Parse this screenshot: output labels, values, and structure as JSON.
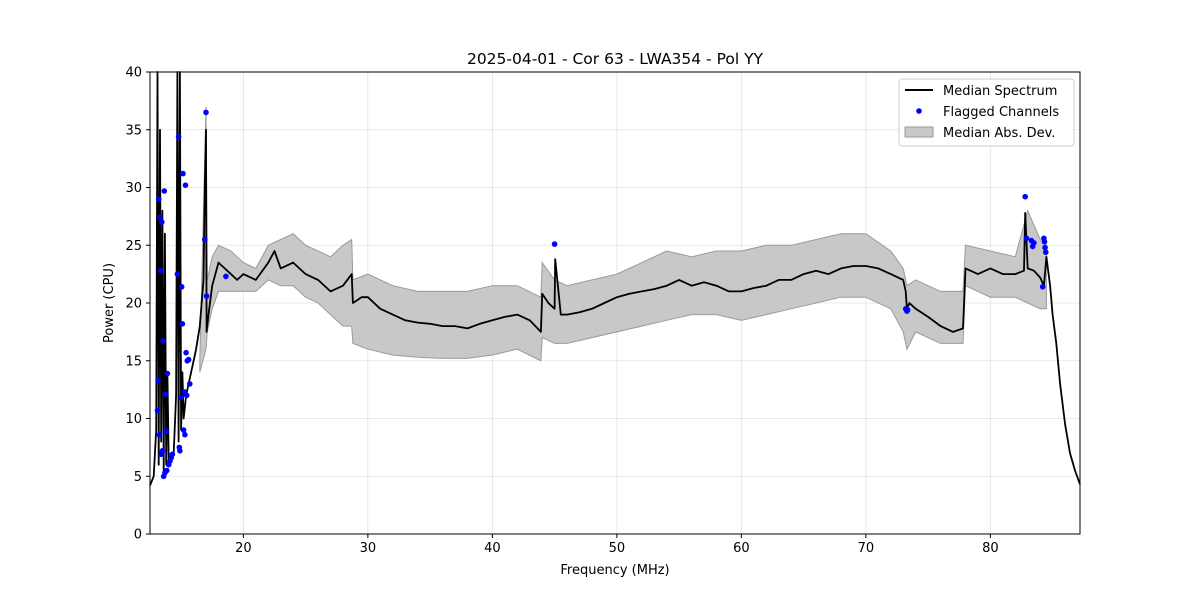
{
  "chart_data": {
    "type": "line",
    "title": "2025-04-01 - Cor 63 - LWA354 - Pol YY",
    "xlabel": "Frequency (MHz)",
    "ylabel": "Power (CPU)",
    "xlim": [
      12.5,
      87.2
    ],
    "ylim": [
      0,
      40
    ],
    "xticks": [
      20,
      30,
      40,
      50,
      60,
      70,
      80
    ],
    "yticks": [
      0,
      5,
      10,
      15,
      20,
      25,
      30,
      35,
      40
    ],
    "grid": true,
    "legend_position": "top-right",
    "colors": {
      "median": "#000000",
      "flagged": "#0000ff",
      "band_fill": "#c8c8c8",
      "band_edge": "#9a9a9a"
    },
    "series": [
      {
        "name": "Median Spectrum",
        "kind": "line",
        "x": [
          12.5,
          12.8,
          13.0,
          13.1,
          13.2,
          13.3,
          13.4,
          13.5,
          13.6,
          13.7,
          13.8,
          13.9,
          14.0,
          14.2,
          14.4,
          14.6,
          14.7,
          14.8,
          14.9,
          15.0,
          15.1,
          15.2,
          15.3,
          15.4,
          15.6,
          15.8,
          16.0,
          16.2,
          16.5,
          16.8,
          16.9,
          17.0,
          17.05,
          17.2,
          17.5,
          18.0,
          18.5,
          19.0,
          19.5,
          20.0,
          21.0,
          22.0,
          22.5,
          23.0,
          24.0,
          25.0,
          26.0,
          27.0,
          28.0,
          28.7,
          28.8,
          29.5,
          30.0,
          31.0,
          32.0,
          33.0,
          34.0,
          35.0,
          36.0,
          37.0,
          38.0,
          39.0,
          40.0,
          41.0,
          42.0,
          43.0,
          43.9,
          44.0,
          44.5,
          45.0,
          45.05,
          45.5,
          46.0,
          47.0,
          48.0,
          49.0,
          50.0,
          51.0,
          52.0,
          53.0,
          54.0,
          55.0,
          56.0,
          57.0,
          58.0,
          59.0,
          60.0,
          61.0,
          62.0,
          63.0,
          64.0,
          65.0,
          66.0,
          67.0,
          68.0,
          69.0,
          70.0,
          71.0,
          72.0,
          73.0,
          73.2,
          73.3,
          73.5,
          74.0,
          75.0,
          76.0,
          77.0,
          77.8,
          78.0,
          79.0,
          80.0,
          81.0,
          82.0,
          82.7,
          82.8,
          83.0,
          83.5,
          84.0,
          84.3,
          84.5,
          84.8,
          85.0,
          85.3,
          85.6,
          86.0,
          86.4,
          86.8,
          87.2
        ],
        "y": [
          4.2,
          5.0,
          9.0,
          40.0,
          6.0,
          35.0,
          8.0,
          28.0,
          5.5,
          26.0,
          6.0,
          14.0,
          6.3,
          6.6,
          7.0,
          12.0,
          40.0,
          8.0,
          40.0,
          9.0,
          14.0,
          10.0,
          11.0,
          12.0,
          13.0,
          14.0,
          15.0,
          16.0,
          18.0,
          22.0,
          30.0,
          35.0,
          17.5,
          19.0,
          21.5,
          23.5,
          23.0,
          22.5,
          22.0,
          22.5,
          22.0,
          23.5,
          24.5,
          23.0,
          23.5,
          22.5,
          22.0,
          21.0,
          21.5,
          22.5,
          20.0,
          20.5,
          20.5,
          19.5,
          19.0,
          18.5,
          18.3,
          18.2,
          18.0,
          18.0,
          17.8,
          18.2,
          18.5,
          18.8,
          19.0,
          18.5,
          17.5,
          20.8,
          20.0,
          19.5,
          23.8,
          19.0,
          19.0,
          19.2,
          19.5,
          20.0,
          20.5,
          20.8,
          21.0,
          21.2,
          21.5,
          22.0,
          21.5,
          21.8,
          21.5,
          21.0,
          21.0,
          21.3,
          21.5,
          22.0,
          22.0,
          22.5,
          22.8,
          22.5,
          23.0,
          23.2,
          23.2,
          23.0,
          22.5,
          22.0,
          21.0,
          19.5,
          20.0,
          19.5,
          18.8,
          18.0,
          17.5,
          17.8,
          23.0,
          22.5,
          23.0,
          22.5,
          22.5,
          22.8,
          27.8,
          23.0,
          22.8,
          22.2,
          21.5,
          24.0,
          21.5,
          19.0,
          16.5,
          13.0,
          9.5,
          7.0,
          5.5,
          4.3
        ]
      },
      {
        "name": "Flagged Channels",
        "kind": "scatter",
        "x": [
          13.1,
          13.15,
          13.2,
          13.25,
          13.3,
          13.35,
          13.4,
          13.45,
          13.5,
          13.55,
          13.6,
          13.65,
          13.7,
          13.75,
          13.8,
          13.85,
          13.9,
          14.0,
          14.1,
          14.2,
          14.3,
          14.7,
          14.8,
          14.85,
          14.9,
          15.0,
          15.05,
          15.1,
          15.15,
          15.2,
          15.25,
          15.3,
          15.35,
          15.4,
          15.45,
          15.5,
          15.6,
          15.7,
          16.9,
          17.0,
          17.05,
          18.6,
          45.0,
          73.2,
          73.3,
          73.35,
          82.8,
          82.9,
          83.3,
          83.4,
          83.5,
          84.2,
          84.3,
          84.35,
          84.4,
          84.45
        ],
        "y": [
          10.7,
          13.3,
          29.0,
          8.6,
          27.4,
          22.8,
          6.9,
          27.0,
          7.2,
          16.7,
          5.0,
          29.7,
          5.3,
          12.1,
          8.9,
          5.5,
          13.9,
          6.0,
          6.3,
          6.6,
          6.9,
          22.5,
          34.4,
          7.5,
          7.2,
          11.8,
          21.4,
          18.2,
          31.2,
          9.0,
          12.3,
          8.6,
          30.2,
          15.7,
          12.0,
          15.0,
          15.1,
          13.0,
          25.5,
          36.5,
          20.6,
          22.3,
          25.1,
          19.5,
          19.3,
          19.4,
          29.2,
          25.6,
          25.4,
          24.9,
          25.2,
          21.4,
          25.6,
          25.3,
          24.8,
          24.4
        ]
      },
      {
        "name": "Median Abs. Dev.",
        "kind": "band",
        "x": [
          16.5,
          17.0,
          17.1,
          17.5,
          18.0,
          19.0,
          20.0,
          21.0,
          22.0,
          23.0,
          24.0,
          25.0,
          26.0,
          27.0,
          28.0,
          28.7,
          28.8,
          30.0,
          32.0,
          34.0,
          36.0,
          38.0,
          40.0,
          42.0,
          43.9,
          44.0,
          45.0,
          46.0,
          48.0,
          50.0,
          52.0,
          54.0,
          56.0,
          58.0,
          60.0,
          62.0,
          64.0,
          66.0,
          68.0,
          70.0,
          72.0,
          73.0,
          73.3,
          74.0,
          76.0,
          77.8,
          78.0,
          80.0,
          82.0,
          83.0,
          84.0,
          84.5
        ],
        "lower": [
          14.0,
          16.0,
          17.5,
          19.5,
          21.0,
          21.0,
          21.0,
          21.0,
          22.0,
          21.5,
          21.5,
          20.5,
          20.0,
          19.0,
          18.0,
          18.0,
          16.5,
          16.0,
          15.5,
          15.3,
          15.2,
          15.2,
          15.5,
          16.0,
          15.0,
          17.0,
          16.5,
          16.5,
          17.0,
          17.5,
          18.0,
          18.5,
          19.0,
          19.0,
          18.5,
          19.0,
          19.5,
          20.0,
          20.5,
          20.5,
          19.5,
          17.5,
          16.0,
          17.5,
          16.5,
          16.5,
          21.5,
          20.5,
          20.5,
          20.0,
          19.5,
          19.5
        ],
        "upper": [
          15.0,
          37.0,
          22.0,
          24.0,
          25.0,
          24.5,
          23.5,
          23.0,
          25.0,
          25.5,
          26.0,
          25.0,
          24.5,
          24.0,
          25.0,
          25.5,
          22.0,
          22.5,
          21.5,
          21.0,
          21.0,
          21.0,
          21.5,
          21.5,
          20.5,
          23.5,
          22.0,
          21.5,
          22.0,
          22.5,
          23.5,
          24.5,
          24.0,
          24.5,
          24.5,
          25.0,
          25.0,
          25.5,
          26.0,
          26.0,
          24.5,
          23.0,
          21.5,
          22.0,
          21.0,
          21.0,
          25.0,
          24.5,
          24.0,
          28.0,
          25.5,
          25.0
        ]
      }
    ]
  }
}
